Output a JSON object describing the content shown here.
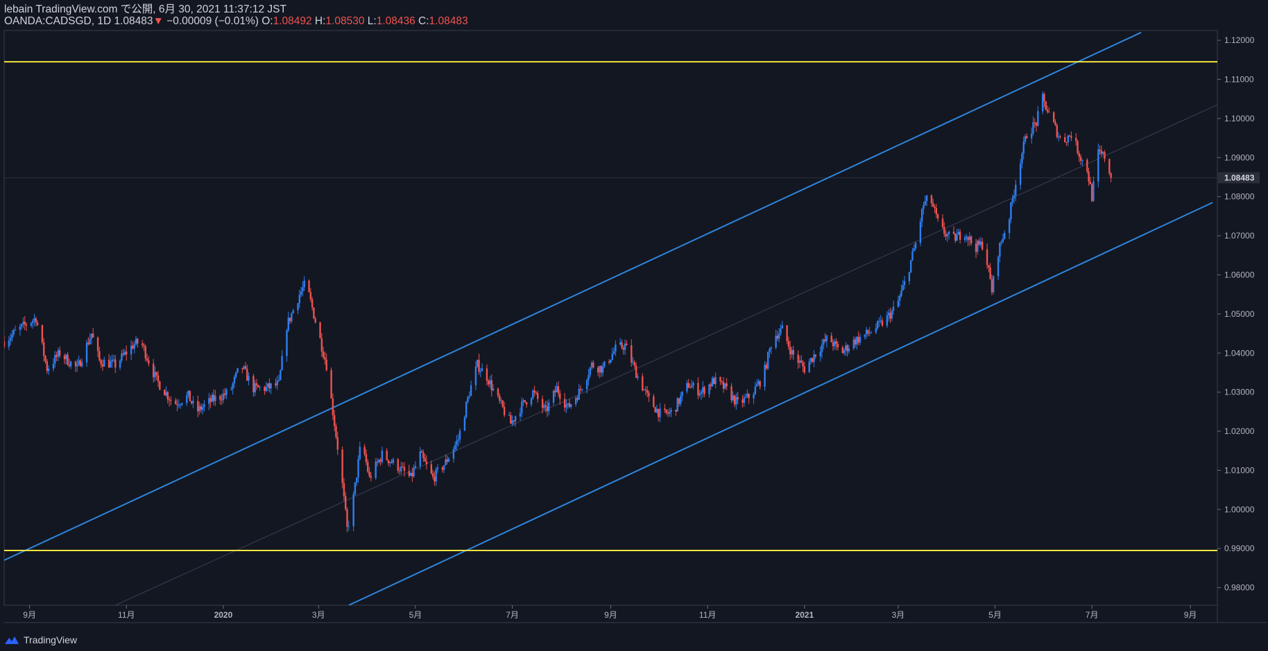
{
  "header": {
    "line1": "lebain TradingView.com で公開, 6月 30, 2021 11:37:12 JST",
    "symbol": "OANDA:CADSGD, 1D",
    "last": "1.08483",
    "change": "−0.00009 (−0.01%)",
    "o_label": "O:",
    "o": "1.08492",
    "h_label": "H:",
    "h": "1.08530",
    "l_label": "L:",
    "l": "1.08436",
    "c_label": "C:",
    "c": "1.08483"
  },
  "footer": {
    "brand": "TradingView"
  },
  "chart_data": {
    "type": "candlestick",
    "ylim": [
      0.9755,
      1.1225
    ],
    "y_ticks": [
      "1.12000",
      "1.11000",
      "1.10000",
      "1.09000",
      "1.08000",
      "1.07000",
      "1.06000",
      "1.05000",
      "1.04000",
      "1.03000",
      "1.02000",
      "1.01000",
      "1.00000",
      "0.99000",
      "0.98000"
    ],
    "x_ticks": [
      {
        "label": "9月",
        "date": "2019-09-01"
      },
      {
        "label": "11月",
        "date": "2019-11-01"
      },
      {
        "label": "2020",
        "date": "2020-01-01"
      },
      {
        "label": "3月",
        "date": "2020-03-01"
      },
      {
        "label": "5月",
        "date": "2020-05-01"
      },
      {
        "label": "7月",
        "date": "2020-07-01"
      },
      {
        "label": "9月",
        "date": "2020-09-01"
      },
      {
        "label": "11月",
        "date": "2020-11-01"
      },
      {
        "label": "2021",
        "date": "2021-01-01"
      },
      {
        "label": "3月",
        "date": "2021-03-01"
      },
      {
        "label": "5月",
        "date": "2021-05-01"
      },
      {
        "label": "7月",
        "date": "2021-07-01"
      },
      {
        "label": "9月",
        "date": "2021-09-01"
      }
    ],
    "x_range": [
      "2019-08-16",
      "2021-09-18"
    ],
    "last_price_label": "1.08483",
    "last_price": 1.08483,
    "horizontal_lines": [
      {
        "price": 1.1145,
        "color": "#f5e642"
      },
      {
        "price": 0.9895,
        "color": "#f5e642"
      }
    ],
    "trend_lines": [
      {
        "p1": {
          "date": "2019-08-16",
          "price": 0.987
        },
        "p2": {
          "date": "2021-08-01",
          "price": 1.122
        },
        "color": "#2e86de"
      },
      {
        "p1": {
          "date": "2020-03-20",
          "price": 0.9755
        },
        "p2": {
          "date": "2021-09-15",
          "price": 1.0785
        },
        "color": "#2e86de"
      },
      {
        "p1": {
          "date": "2019-10-25",
          "price": 0.9755
        },
        "p2": {
          "date": "2021-09-18",
          "price": 1.1035
        },
        "color": "#3a3f55"
      }
    ],
    "close_path": [
      [
        "2019-08-16",
        1.043
      ],
      [
        "2019-08-25",
        1.046
      ],
      [
        "2019-09-05",
        1.049
      ],
      [
        "2019-09-12",
        1.036
      ],
      [
        "2019-09-20",
        1.04
      ],
      [
        "2019-10-01",
        1.036
      ],
      [
        "2019-10-10",
        1.045
      ],
      [
        "2019-10-15",
        1.038
      ],
      [
        "2019-10-25",
        1.037
      ],
      [
        "2019-11-05",
        1.042
      ],
      [
        "2019-11-10",
        1.043
      ],
      [
        "2019-11-20",
        1.033
      ],
      [
        "2019-12-01",
        1.027
      ],
      [
        "2019-12-10",
        1.029
      ],
      [
        "2019-12-15",
        1.025
      ],
      [
        "2019-12-25",
        1.028
      ],
      [
        "2020-01-05",
        1.03
      ],
      [
        "2020-01-12",
        1.037
      ],
      [
        "2020-01-20",
        1.031
      ],
      [
        "2020-01-28",
        1.031
      ],
      [
        "2020-02-05",
        1.032
      ],
      [
        "2020-02-10",
        1.047
      ],
      [
        "2020-02-18",
        1.055
      ],
      [
        "2020-02-22",
        1.058
      ],
      [
        "2020-03-01",
        1.045
      ],
      [
        "2020-03-06",
        1.037
      ],
      [
        "2020-03-11",
        1.022
      ],
      [
        "2020-03-15",
        1.01
      ],
      [
        "2020-03-19",
        0.995
      ],
      [
        "2020-03-22",
        1.0
      ],
      [
        "2020-03-28",
        1.018
      ],
      [
        "2020-04-02",
        1.008
      ],
      [
        "2020-04-10",
        1.014
      ],
      [
        "2020-04-20",
        1.011
      ],
      [
        "2020-04-28",
        1.008
      ],
      [
        "2020-05-04",
        1.014
      ],
      [
        "2020-05-12",
        1.008
      ],
      [
        "2020-05-20",
        1.012
      ],
      [
        "2020-05-28",
        1.018
      ],
      [
        "2020-06-04",
        1.03
      ],
      [
        "2020-06-09",
        1.037
      ],
      [
        "2020-06-15",
        1.034
      ],
      [
        "2020-06-22",
        1.028
      ],
      [
        "2020-06-30",
        1.022
      ],
      [
        "2020-07-06",
        1.026
      ],
      [
        "2020-07-14",
        1.03
      ],
      [
        "2020-07-22",
        1.025
      ],
      [
        "2020-07-29",
        1.031
      ],
      [
        "2020-08-05",
        1.026
      ],
      [
        "2020-08-12",
        1.03
      ],
      [
        "2020-08-20",
        1.037
      ],
      [
        "2020-08-27",
        1.036
      ],
      [
        "2020-09-04",
        1.041
      ],
      [
        "2020-09-10",
        1.042
      ],
      [
        "2020-09-18",
        1.034
      ],
      [
        "2020-09-25",
        1.028
      ],
      [
        "2020-10-03",
        1.024
      ],
      [
        "2020-10-10",
        1.025
      ],
      [
        "2020-10-20",
        1.032
      ],
      [
        "2020-10-28",
        1.03
      ],
      [
        "2020-11-05",
        1.033
      ],
      [
        "2020-11-12",
        1.031
      ],
      [
        "2020-11-20",
        1.027
      ],
      [
        "2020-11-28",
        1.029
      ],
      [
        "2020-12-06",
        1.034
      ],
      [
        "2020-12-12",
        1.044
      ],
      [
        "2020-12-18",
        1.046
      ],
      [
        "2020-12-24",
        1.04
      ],
      [
        "2021-01-01",
        1.036
      ],
      [
        "2021-01-08",
        1.04
      ],
      [
        "2021-01-16",
        1.044
      ],
      [
        "2021-01-24",
        1.04
      ],
      [
        "2021-02-01",
        1.043
      ],
      [
        "2021-02-10",
        1.045
      ],
      [
        "2021-02-20",
        1.048
      ],
      [
        "2021-02-28",
        1.052
      ],
      [
        "2021-03-06",
        1.059
      ],
      [
        "2021-03-12",
        1.068
      ],
      [
        "2021-03-17",
        1.078
      ],
      [
        "2021-03-21",
        1.08
      ],
      [
        "2021-03-27",
        1.072
      ],
      [
        "2021-04-04",
        1.069
      ],
      [
        "2021-04-12",
        1.071
      ],
      [
        "2021-04-18",
        1.067
      ],
      [
        "2021-04-24",
        1.068
      ],
      [
        "2021-04-29",
        1.056
      ],
      [
        "2021-05-03",
        1.066
      ],
      [
        "2021-05-10",
        1.075
      ],
      [
        "2021-05-16",
        1.088
      ],
      [
        "2021-05-21",
        1.096
      ],
      [
        "2021-05-27",
        1.099
      ],
      [
        "2021-05-31",
        1.105
      ],
      [
        "2021-06-05",
        1.1
      ],
      [
        "2021-06-12",
        1.094
      ],
      [
        "2021-06-18",
        1.096
      ],
      [
        "2021-06-24",
        1.09
      ],
      [
        "2021-06-28",
        1.087
      ],
      [
        "2021-07-01",
        1.08
      ],
      [
        "2021-07-05",
        1.091
      ],
      [
        "2021-07-10",
        1.09
      ],
      [
        "2021-07-13",
        1.08483
      ]
    ]
  }
}
